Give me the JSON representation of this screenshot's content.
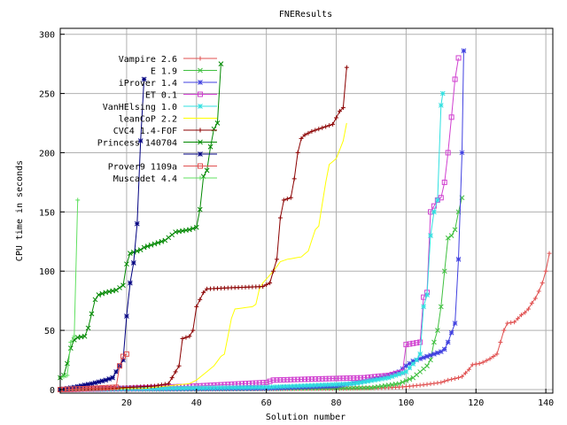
{
  "chart_data": {
    "type": "line",
    "title": "FNEResults",
    "xlabel": "Solution number",
    "ylabel": "CPU time in seconds",
    "xlim": [
      1,
      142
    ],
    "ylim": [
      -3,
      305
    ],
    "xticks": [
      20,
      40,
      60,
      80,
      100,
      120,
      140
    ],
    "yticks": [
      0,
      50,
      100,
      150,
      200,
      250,
      300
    ],
    "xtick_labels": [
      "20",
      "40",
      "60",
      "80",
      "100",
      "120",
      "140"
    ],
    "ytick_labels": [
      "0",
      "50",
      "100",
      "150",
      "200",
      "250",
      "300"
    ],
    "grid": true,
    "legend_position": "top-left",
    "series": [
      {
        "name": "Vampire 2.6",
        "color": "#e05050",
        "marker": "plus",
        "points": [
          [
            1,
            0
          ],
          [
            40,
            0.3
          ],
          [
            80,
            0.7
          ],
          [
            95,
            1.5
          ],
          [
            100,
            2.5
          ],
          [
            105,
            4
          ],
          [
            110,
            6
          ],
          [
            112,
            8
          ],
          [
            115,
            10
          ],
          [
            116,
            11
          ],
          [
            118,
            17
          ],
          [
            119,
            21
          ],
          [
            121,
            22
          ],
          [
            122,
            23
          ],
          [
            124,
            26
          ],
          [
            126,
            30
          ],
          [
            127,
            40
          ],
          [
            128,
            50
          ],
          [
            129,
            56
          ],
          [
            131,
            57
          ],
          [
            132,
            60
          ],
          [
            133,
            63
          ],
          [
            134,
            65
          ],
          [
            135,
            68
          ],
          [
            136,
            73
          ],
          [
            137,
            77
          ],
          [
            138,
            83
          ],
          [
            139,
            90
          ],
          [
            140,
            100
          ],
          [
            141,
            115
          ]
        ]
      },
      {
        "name": "E 1.9",
        "color": "#40c040",
        "marker": "x",
        "points": [
          [
            1,
            0
          ],
          [
            50,
            0.5
          ],
          [
            90,
            1.5
          ],
          [
            98,
            5
          ],
          [
            102,
            10
          ],
          [
            104,
            15
          ],
          [
            106,
            20
          ],
          [
            107,
            25
          ],
          [
            108,
            40
          ],
          [
            109,
            50
          ],
          [
            110,
            70
          ],
          [
            111,
            100
          ],
          [
            112,
            128
          ],
          [
            113,
            130
          ],
          [
            114,
            135
          ],
          [
            115,
            150
          ],
          [
            116,
            162
          ]
        ]
      },
      {
        "name": "iProver 1.4",
        "color": "#4040e0",
        "marker": "star",
        "points": [
          [
            1,
            0
          ],
          [
            60,
            1
          ],
          [
            80,
            3
          ],
          [
            88,
            7
          ],
          [
            95,
            12
          ],
          [
            98,
            15
          ],
          [
            100,
            20
          ],
          [
            102,
            24
          ],
          [
            104,
            26
          ],
          [
            106,
            28
          ],
          [
            108,
            30
          ],
          [
            110,
            32
          ],
          [
            111,
            34
          ],
          [
            112,
            40
          ],
          [
            113,
            48
          ],
          [
            114,
            56
          ],
          [
            115,
            110
          ],
          [
            116,
            200
          ],
          [
            116.5,
            286
          ]
        ]
      },
      {
        "name": "ET 0.1",
        "color": "#d040d0",
        "marker": "box",
        "points": [
          [
            1,
            0
          ],
          [
            20,
            1
          ],
          [
            40,
            3
          ],
          [
            60,
            6
          ],
          [
            61,
            7
          ],
          [
            62,
            8
          ],
          [
            75,
            9
          ],
          [
            88,
            10
          ],
          [
            95,
            12
          ],
          [
            99,
            15
          ],
          [
            100,
            38
          ],
          [
            102,
            39
          ],
          [
            104,
            40
          ],
          [
            105,
            78
          ],
          [
            106,
            82
          ],
          [
            107,
            150
          ],
          [
            108,
            155
          ],
          [
            109,
            160
          ],
          [
            110,
            162
          ],
          [
            111,
            175
          ],
          [
            112,
            200
          ],
          [
            113,
            230
          ],
          [
            114,
            262
          ],
          [
            115,
            280
          ]
        ]
      },
      {
        "name": "VanHElsing 1.0",
        "color": "#30e0e0",
        "marker": "star",
        "points": [
          [
            1,
            0
          ],
          [
            60,
            2
          ],
          [
            85,
            5
          ],
          [
            95,
            10
          ],
          [
            100,
            15
          ],
          [
            103,
            25
          ],
          [
            104,
            30
          ],
          [
            105,
            70
          ],
          [
            106,
            80
          ],
          [
            107,
            130
          ],
          [
            108,
            150
          ],
          [
            109,
            160
          ],
          [
            110,
            240
          ],
          [
            110.5,
            250
          ]
        ]
      },
      {
        "name": "leanCoP 2.2",
        "color": "#ffff00",
        "marker": "none",
        "points": [
          [
            1,
            0
          ],
          [
            25,
            1
          ],
          [
            38,
            5
          ],
          [
            40,
            8
          ],
          [
            45,
            20
          ],
          [
            47,
            28
          ],
          [
            48,
            30
          ],
          [
            50,
            60
          ],
          [
            51,
            68
          ],
          [
            56,
            70
          ],
          [
            57,
            72
          ],
          [
            58,
            85
          ],
          [
            59,
            90
          ],
          [
            62,
            100
          ],
          [
            64,
            108
          ],
          [
            66,
            110
          ],
          [
            70,
            112
          ],
          [
            72,
            117
          ],
          [
            74,
            135
          ],
          [
            75,
            138
          ],
          [
            77,
            175
          ],
          [
            78,
            190
          ],
          [
            80,
            195
          ],
          [
            82,
            210
          ],
          [
            83,
            225
          ]
        ]
      },
      {
        "name": "CVC4 1.4-FOF",
        "color": "#8b0000",
        "marker": "plus",
        "points": [
          [
            1,
            0
          ],
          [
            15,
            1
          ],
          [
            28,
            3
          ],
          [
            32,
            5
          ],
          [
            34,
            15
          ],
          [
            35,
            20
          ],
          [
            36,
            43
          ],
          [
            38,
            45
          ],
          [
            39,
            50
          ],
          [
            40,
            70
          ],
          [
            42,
            82
          ],
          [
            43,
            85
          ],
          [
            50,
            86
          ],
          [
            59,
            87
          ],
          [
            61,
            90
          ],
          [
            62,
            100
          ],
          [
            63,
            110
          ],
          [
            64,
            145
          ],
          [
            65,
            160
          ],
          [
            67,
            162
          ],
          [
            68,
            178
          ],
          [
            69,
            200
          ],
          [
            70,
            212
          ],
          [
            71,
            215
          ],
          [
            73,
            218
          ],
          [
            75,
            220
          ],
          [
            77,
            222
          ],
          [
            79,
            224
          ],
          [
            81,
            235
          ],
          [
            82,
            238
          ],
          [
            83,
            272
          ]
        ]
      },
      {
        "name": "Princess 140704",
        "color": "#008800",
        "marker": "x",
        "points": [
          [
            1,
            10
          ],
          [
            2,
            12
          ],
          [
            3,
            22
          ],
          [
            4,
            35
          ],
          [
            5,
            42
          ],
          [
            6,
            44
          ],
          [
            8,
            45
          ],
          [
            9,
            52
          ],
          [
            10,
            64
          ],
          [
            11,
            76
          ],
          [
            12,
            80
          ],
          [
            14,
            82
          ],
          [
            17,
            84
          ],
          [
            19,
            88
          ],
          [
            20,
            106
          ],
          [
            21,
            115
          ],
          [
            24,
            118
          ],
          [
            25,
            120
          ],
          [
            27,
            122
          ],
          [
            31,
            126
          ],
          [
            34,
            133
          ],
          [
            38,
            135
          ],
          [
            40,
            137
          ],
          [
            41,
            152
          ],
          [
            42,
            180
          ],
          [
            43,
            185
          ],
          [
            44,
            205
          ],
          [
            45,
            220
          ],
          [
            46,
            225
          ],
          [
            47,
            275
          ]
        ]
      },
      {
        "name": "",
        "color": "#000080",
        "marker": "star",
        "points": [
          [
            1,
            0
          ],
          [
            5,
            2
          ],
          [
            10,
            5
          ],
          [
            14,
            8
          ],
          [
            16,
            10
          ],
          [
            17,
            15
          ],
          [
            18,
            20
          ],
          [
            19,
            25
          ],
          [
            20,
            62
          ],
          [
            21,
            90
          ],
          [
            22,
            107
          ],
          [
            23,
            140
          ],
          [
            24,
            210
          ],
          [
            25,
            262
          ]
        ]
      },
      {
        "name": "Prover9 1109a",
        "color": "#e05050",
        "marker": "box",
        "points": [
          [
            1,
            0
          ],
          [
            10,
            1
          ],
          [
            17,
            2
          ],
          [
            18,
            20
          ],
          [
            19,
            28
          ],
          [
            20,
            30
          ]
        ]
      },
      {
        "name": "Muscadet 4.4",
        "color": "#60e060",
        "marker": "plus",
        "points": [
          [
            1,
            10
          ],
          [
            2,
            11
          ],
          [
            3,
            12
          ],
          [
            4,
            40
          ],
          [
            5,
            45
          ],
          [
            6,
            160
          ]
        ]
      }
    ]
  }
}
